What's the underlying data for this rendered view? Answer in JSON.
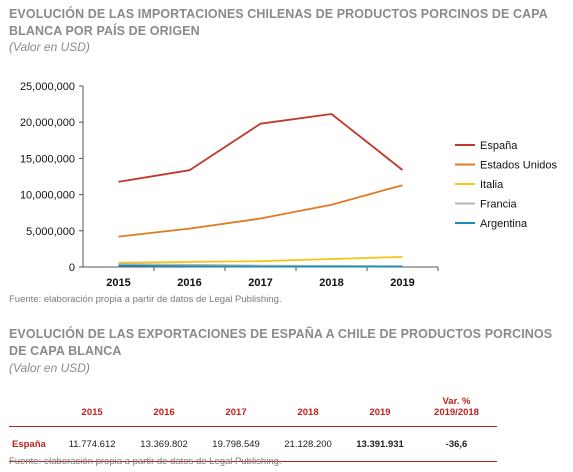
{
  "chart_section": {
    "title": "EVOLUCIÓN DE LAS IMPORTACIONES CHILENAS DE PRODUCTOS PORCINOS DE CAPA BLANCA POR PAÍS DE ORIGEN",
    "subtitle": "(Valor en USD)",
    "source": "Fuente: elaboración propia a partir de datos de Legal Publishing."
  },
  "chart_data": {
    "type": "line",
    "categories": [
      "2015",
      "2016",
      "2017",
      "2018",
      "2019"
    ],
    "series": [
      {
        "name": "España",
        "values": [
          11774612,
          13369802,
          19798549,
          21128200,
          13391931
        ],
        "color": "#c0392b"
      },
      {
        "name": "Estados Unidos",
        "values": [
          4200000,
          5300000,
          6700000,
          8600000,
          11300000
        ],
        "color": "#e07b22"
      },
      {
        "name": "Italia",
        "values": [
          600000,
          700000,
          800000,
          1100000,
          1400000
        ],
        "color": "#f5c518"
      },
      {
        "name": "Francia",
        "values": [
          400000,
          300000,
          200000,
          150000,
          100000
        ],
        "color": "#b5b5b5"
      },
      {
        "name": "Argentina",
        "values": [
          200000,
          100000,
          50000,
          50000,
          50000
        ],
        "color": "#1a8fb5"
      }
    ],
    "yticks": [
      "25,000,000",
      "20,000,000",
      "15,000,000",
      "10,000,000",
      "5,000,000",
      "0"
    ],
    "ylim": [
      0,
      25000000
    ],
    "legend_position": "right",
    "grid": false
  },
  "table_section": {
    "title": "EVOLUCIÓN DE LAS EXPORTACIONES DE ESPAÑA A CHILE DE PRODUCTOS PORCINOS DE CAPA BLANCA",
    "subtitle": "(Valor en USD)",
    "source": "Fuente: elaboración propia a partir de datos de Legal Publishing.",
    "headers": [
      "",
      "2015",
      "2016",
      "2017",
      "2018",
      "2019",
      "Var. %\n2019/2018"
    ],
    "rows": [
      [
        "España",
        "11.774.612",
        "13.369.802",
        "19.798.549",
        "21.128.200",
        "13.391.931",
        "-36,6"
      ]
    ]
  }
}
